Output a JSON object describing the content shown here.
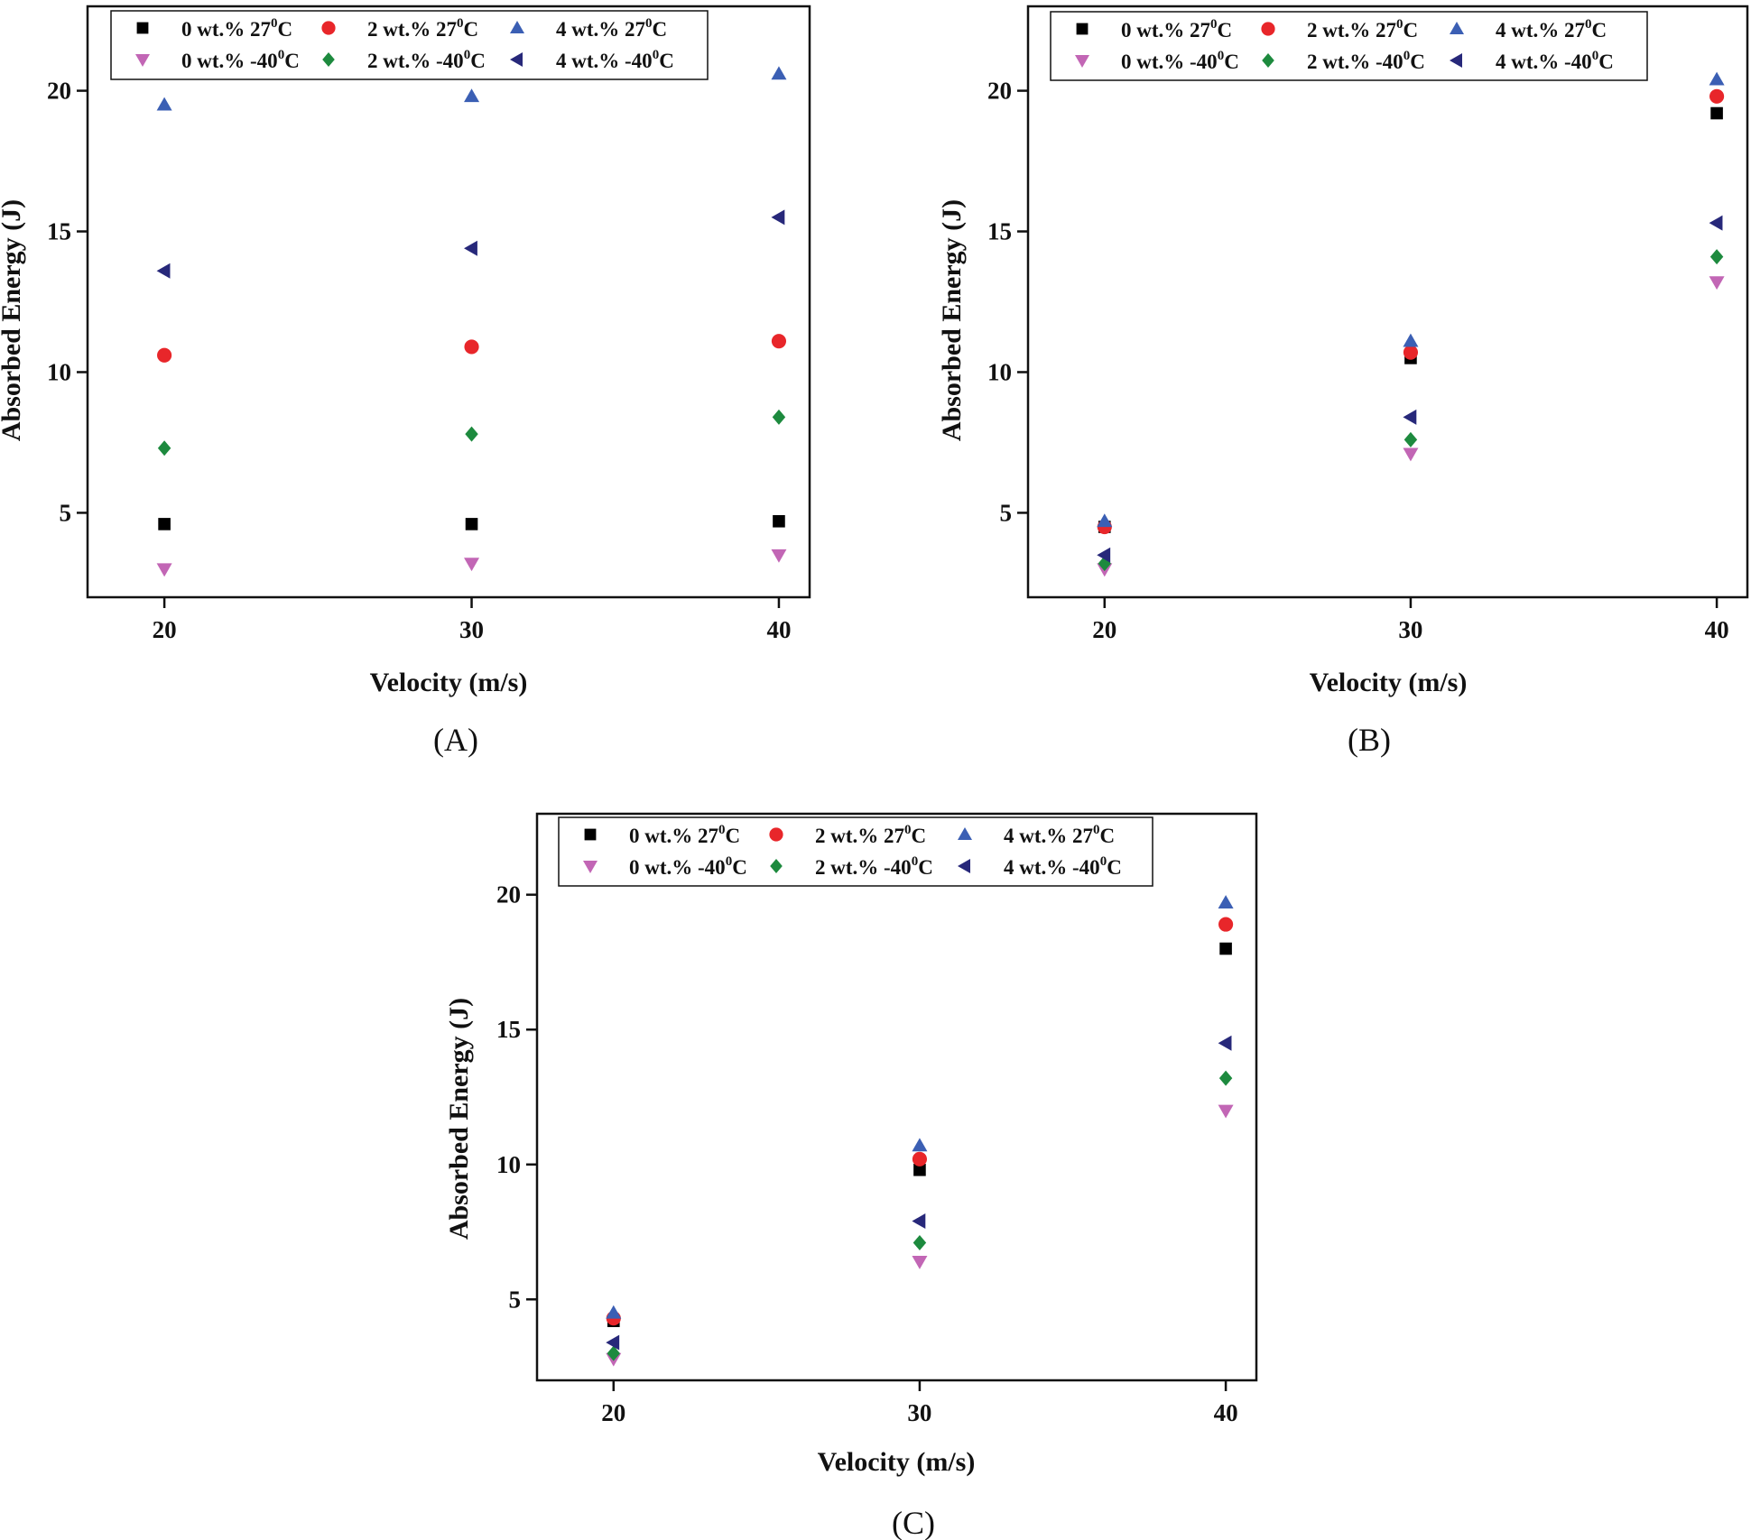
{
  "colors": {
    "black": "#000000",
    "red": "#e8262a",
    "blue": "#3b5fb4",
    "pink": "#c266b5",
    "green": "#1d8a3e",
    "navy": "#27287a"
  },
  "series_meta": [
    {
      "key": "s1",
      "name": "0 wt.% 27°C",
      "label_main": "0 wt.% 27",
      "label_sup": "0",
      "label_end": "C",
      "marker": "square",
      "color": "#000000"
    },
    {
      "key": "s2",
      "name": "2 wt.% 27°C",
      "label_main": "2 wt.% 27",
      "label_sup": "0",
      "label_end": "C",
      "marker": "circle",
      "color": "#e8262a"
    },
    {
      "key": "s3",
      "name": "4 wt.% 27°C",
      "label_main": "4 wt.% 27",
      "label_sup": "0",
      "label_end": "C",
      "marker": "triangle-up",
      "color": "#3b5fb4"
    },
    {
      "key": "s4",
      "name": "0 wt.% -40°C",
      "label_main": "0 wt.% -40",
      "label_sup": "0",
      "label_end": "C",
      "marker": "triangle-down",
      "color": "#c266b5"
    },
    {
      "key": "s5",
      "name": "2 wt.% -40°C",
      "label_main": "2 wt.% -40",
      "label_sup": "0",
      "label_end": "C",
      "marker": "diamond",
      "color": "#1d8a3e"
    },
    {
      "key": "s6",
      "name": "4 wt.% -40°C",
      "label_main": "4 wt.% -40",
      "label_sup": "0",
      "label_end": "C",
      "marker": "triangle-left",
      "color": "#27287a"
    }
  ],
  "chart_data": [
    {
      "panel_label": "(A)",
      "type": "scatter",
      "xlabel": "Velocity (m/s)",
      "ylabel": "Absorbed Energy (J)",
      "xlim": [
        17.5,
        41
      ],
      "ylim": [
        2,
        23
      ],
      "xticks": [
        20,
        30,
        40
      ],
      "yticks": [
        5,
        10,
        15,
        20
      ],
      "xtick_labels": [
        "20",
        "30",
        "40"
      ],
      "ytick_labels": [
        "5",
        "10",
        "15",
        "20"
      ],
      "x": [
        20,
        30,
        40
      ],
      "series": [
        {
          "name": "0 wt.% 27°C",
          "values": [
            4.6,
            4.6,
            4.7
          ]
        },
        {
          "name": "2 wt.% 27°C",
          "values": [
            10.6,
            10.9,
            11.1
          ]
        },
        {
          "name": "4 wt.% 27°C",
          "values": [
            19.5,
            19.8,
            20.6
          ]
        },
        {
          "name": "0 wt.% -40°C",
          "values": [
            3.0,
            3.2,
            3.5
          ]
        },
        {
          "name": "2 wt.% -40°C",
          "values": [
            7.3,
            7.8,
            8.4
          ]
        },
        {
          "name": "4 wt.% -40°C",
          "values": [
            13.6,
            14.4,
            15.5
          ]
        }
      ]
    },
    {
      "panel_label": "(B)",
      "type": "scatter",
      "xlabel": "Velocity (m/s)",
      "ylabel": "Absorbed Energy (J)",
      "xlim": [
        17.5,
        41
      ],
      "ylim": [
        2,
        23
      ],
      "xticks": [
        20,
        30,
        40
      ],
      "yticks": [
        5,
        10,
        15,
        20
      ],
      "xtick_labels": [
        "20",
        "30",
        "40"
      ],
      "ytick_labels": [
        "5",
        "10",
        "15",
        "20"
      ],
      "x": [
        20,
        30,
        40
      ],
      "series": [
        {
          "name": "0 wt.% 27°C",
          "values": [
            4.5,
            10.5,
            19.2
          ]
        },
        {
          "name": "2 wt.% 27°C",
          "values": [
            4.5,
            10.7,
            19.8
          ]
        },
        {
          "name": "4 wt.% 27°C",
          "values": [
            4.7,
            11.1,
            20.4
          ]
        },
        {
          "name": "0 wt.% -40°C",
          "values": [
            3.0,
            7.1,
            13.2
          ]
        },
        {
          "name": "2 wt.% -40°C",
          "values": [
            3.2,
            7.6,
            14.1
          ]
        },
        {
          "name": "4 wt.% -40°C",
          "values": [
            3.5,
            8.4,
            15.3
          ]
        }
      ]
    },
    {
      "panel_label": "(C)",
      "type": "scatter",
      "xlabel": "Velocity (m/s)",
      "ylabel": "Absorbed Energy (J)",
      "xlim": [
        17.5,
        41
      ],
      "ylim": [
        2,
        23
      ],
      "xticks": [
        20,
        30,
        40
      ],
      "yticks": [
        5,
        10,
        15,
        20
      ],
      "xtick_labels": [
        "20",
        "30",
        "40"
      ],
      "ytick_labels": [
        "5",
        "10",
        "15",
        "20"
      ],
      "x": [
        20,
        30,
        40
      ],
      "series": [
        {
          "name": "0 wt.% 27°C",
          "values": [
            4.2,
            9.8,
            18.0
          ]
        },
        {
          "name": "2 wt.% 27°C",
          "values": [
            4.3,
            10.2,
            18.9
          ]
        },
        {
          "name": "4 wt.% 27°C",
          "values": [
            4.5,
            10.7,
            19.7
          ]
        },
        {
          "name": "0 wt.% -40°C",
          "values": [
            2.8,
            6.4,
            12.0
          ]
        },
        {
          "name": "2 wt.% -40°C",
          "values": [
            3.0,
            7.1,
            13.2
          ]
        },
        {
          "name": "4 wt.% -40°C",
          "values": [
            3.4,
            7.9,
            14.5
          ]
        }
      ]
    }
  ]
}
